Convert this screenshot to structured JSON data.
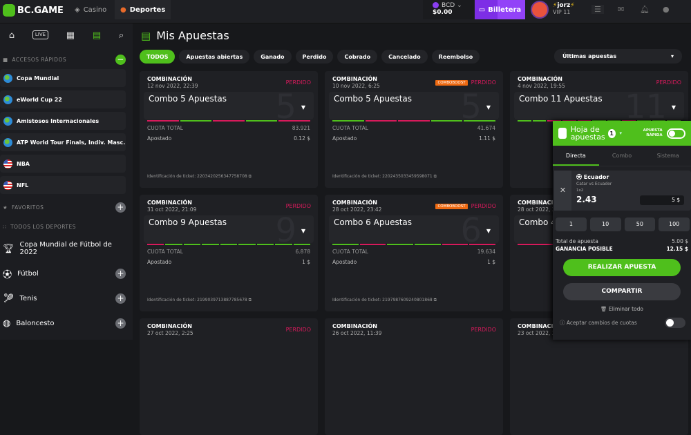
{
  "header": {
    "logo": "BC.GAME",
    "tabs": [
      {
        "label": "Casino"
      },
      {
        "label": "Deportes",
        "active": true
      }
    ],
    "currency": "BCD",
    "balance": "$0.00",
    "wallet_label": "Billetera",
    "username": "jorz",
    "vip": "VIP 11"
  },
  "sidebar": {
    "quick_access_title": "ACCESOS RÁPIDOS",
    "quick_items": [
      {
        "label": "Copa Mundial",
        "icon": "globe"
      },
      {
        "label": "eWorld Cup 22",
        "icon": "globe"
      },
      {
        "label": "Amistosos Internacionales",
        "icon": "globe"
      },
      {
        "label": "ATP World Tour Finals, Indiv. Masc.",
        "icon": "globe"
      },
      {
        "label": "NBA",
        "icon": "us-flag"
      },
      {
        "label": "NFL",
        "icon": "us-flag"
      }
    ],
    "favorites_title": "FAVORITOS",
    "all_sports_title": "TODOS LOS DEPORTES",
    "sports": [
      {
        "label": "Copa Mundial de Fútbol de 2022",
        "icon": "trophy"
      },
      {
        "label": "Fútbol",
        "icon": "soccer-ball"
      },
      {
        "label": "Tenis",
        "icon": "tennis-racket"
      },
      {
        "label": "Baloncesto",
        "icon": "basketball"
      }
    ]
  },
  "main": {
    "title": "Mis Apuestas",
    "filters": [
      "TODOS",
      "Apuestas abiertas",
      "Ganado",
      "Perdido",
      "Cobrado",
      "Cancelado",
      "Reembolso"
    ],
    "active_filter": "TODOS",
    "sort": "Últimas apuestas",
    "labels": {
      "type": "COMBINACIÓN",
      "total_odds": "CUOTA TOTAL",
      "staked": "Apostado",
      "ticket": "Identificación de ticket:",
      "boost": "COMBOBOOST"
    },
    "colors": {
      "won": "#4fbf1c",
      "lost": "#d61a5b"
    },
    "bets": [
      {
        "date": "12 nov 2022, 22:39",
        "status": "PERDIDO",
        "boost": false,
        "combo": "Combo 5 Apuestas",
        "count": "5",
        "odds": "83.921",
        "staked": "0.12 $",
        "ticket": "2203420256347758708",
        "legs": [
          "lost",
          "won",
          "lost",
          "won",
          "lost"
        ]
      },
      {
        "date": "10 nov 2022, 6:25",
        "status": "PERDIDO",
        "boost": true,
        "combo": "Combo 5 Apuestas",
        "count": "5",
        "odds": "41.674",
        "staked": "1.11 $",
        "ticket": "2202435033459598071",
        "legs": [
          "won",
          "lost",
          "lost",
          "won",
          "won"
        ]
      },
      {
        "date": "4 nov 2022, 19:55",
        "status": "PERDIDO",
        "boost": false,
        "combo": "Combo 11 Apuestas",
        "count": "11",
        "odds": "",
        "staked": "",
        "ticket": "",
        "legs": [
          "won",
          "won",
          "lost",
          "lost",
          "lost",
          "won",
          "won",
          "lost",
          "won",
          "won",
          "won"
        ]
      },
      {
        "date": "31 oct 2022, 21:09",
        "status": "PERDIDO",
        "boost": false,
        "combo": "Combo 9 Apuestas",
        "count": "9",
        "odds": "6.878",
        "staked": "1 $",
        "ticket": "2199039713887785678",
        "legs": [
          "lost",
          "won",
          "won",
          "won",
          "won",
          "won",
          "won",
          "won",
          "won"
        ]
      },
      {
        "date": "28 oct 2022, 23:42",
        "status": "PERDIDO",
        "boost": true,
        "combo": "Combo 6 Apuestas",
        "count": "6",
        "odds": "19.634",
        "staked": "1 $",
        "ticket": "2197987609240801868",
        "legs": [
          "won",
          "lost",
          "won",
          "won",
          "lost",
          "lost"
        ]
      },
      {
        "date": "28 oct 2022, 2",
        "status": "",
        "boost": false,
        "combo": "Combo 4",
        "count": "4",
        "odds": "",
        "staked": "",
        "ticket": "",
        "legs": [
          "lost",
          "lost",
          "lost",
          "lost"
        ]
      },
      {
        "date": "27 oct 2022, 2:25",
        "status": "PERDIDO",
        "boost": false,
        "combo": "",
        "count": "",
        "odds": "",
        "staked": "",
        "ticket": "",
        "legs": []
      },
      {
        "date": "26 oct 2022, 11:39",
        "status": "PERDIDO",
        "boost": false,
        "combo": "",
        "count": "",
        "odds": "",
        "staked": "",
        "ticket": "",
        "legs": []
      },
      {
        "date": "23 oct 2022, 2",
        "status": "",
        "boost": false,
        "combo": "",
        "count": "",
        "odds": "",
        "staked": "",
        "ticket": "",
        "legs": []
      }
    ]
  },
  "betslip": {
    "title": "Hoja de apuestas",
    "count": "1",
    "quick_bet": "APUESTA RÁPIDA",
    "tabs": [
      "Directa",
      "Combo",
      "Sistema"
    ],
    "active_tab": "Directa",
    "selection": {
      "team": "Ecuador",
      "match": "Catar vs Ecuador",
      "market": "1x2",
      "odds": "2.43",
      "stake": "5 $"
    },
    "quick_amounts": [
      "1",
      "10",
      "50",
      "100"
    ],
    "total_label": "Total de apuesta",
    "total": "5.00 $",
    "win_label": "GANANCIA POSIBLE",
    "win": "12.15 $",
    "place_label": "REALIZAR APUESTA",
    "share_label": "COMPARTIR",
    "clear_label": "Eliminar todo",
    "accept_label": "Aceptar cambios de cuotas"
  }
}
